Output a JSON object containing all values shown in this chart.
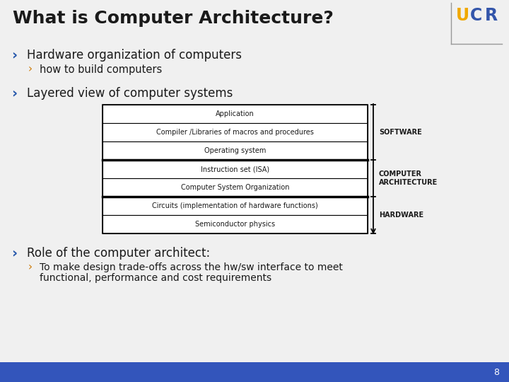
{
  "title": "What is Computer Architecture?",
  "title_color": "#1a1a1a",
  "title_fontsize": 18,
  "bg_color": "#f0f0f0",
  "bottom_bar_color": "#3355bb",
  "bottom_number": "8",
  "bullet1_text": "Hardware organization of computers",
  "bullet1_sub": "how to build computers",
  "bullet2_text": "Layered view of computer systems",
  "bullet3_text": "Role of the computer architect:",
  "bullet3_sub1": "To make design trade-offs across the hw/sw interface to meet",
  "bullet3_sub2": "functional, performance and cost requirements",
  "bullet_color": "#2255aa",
  "sub_bullet_color": "#cc7700",
  "text_color": "#1a1a1a",
  "layers": [
    "Application",
    "Compiler /Libraries of macros and procedures",
    "Operating system",
    "Instruction set (ISA)",
    "Computer System Organization",
    "Circuits (implementation of hardware functions)",
    "Semiconductor physics"
  ],
  "thick_line_after_rows": [
    2,
    4
  ],
  "ucr_u_color": "#f0a800",
  "ucr_cr_color": "#3355aa",
  "logo_line_color": "#999999"
}
